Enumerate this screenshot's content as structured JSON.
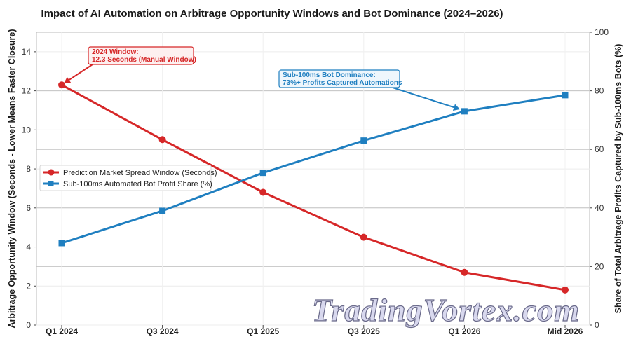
{
  "chart_data": {
    "type": "line",
    "title": "Impact of AI Automation on Arbitrage Opportunity Windows and Bot Dominance (2024–2026)",
    "categories": [
      "Q1 2024",
      "Q3 2024",
      "Q1 2025",
      "Q3 2025",
      "Q1 2026",
      "Mid 2026"
    ],
    "ylabel": "Arbitrage Opportunity Window (Seconds - Lower Means Faster Closure)",
    "y2label": "Share of Total Arbitrage Profits Captured by Sub-100ms Bots (%)",
    "ylim": [
      0,
      15
    ],
    "y2lim": [
      0,
      100
    ],
    "yticks": [
      0,
      2,
      4,
      6,
      8,
      10,
      12,
      14
    ],
    "y2ticks": [
      0,
      20,
      40,
      60,
      80,
      100
    ],
    "grid": true,
    "legend_position": "center-left",
    "series": [
      {
        "name": "Prediction Market Spread Window (Seconds)",
        "axis": "left",
        "color": "#d62728",
        "marker": "circle",
        "values": [
          12.3,
          9.5,
          6.8,
          4.5,
          2.7,
          1.8
        ]
      },
      {
        "name": "Sub-100ms Automated Bot Profit Share (%)",
        "axis": "right",
        "color": "#1f7fc0",
        "marker": "square",
        "values": [
          28,
          39,
          52,
          63,
          73,
          78.5
        ]
      }
    ],
    "annotations": [
      {
        "series": 0,
        "point": 0,
        "lines": [
          "2024 Window:",
          "12.3 Seconds (Manual Window)"
        ],
        "color": "#d62728"
      },
      {
        "series": 1,
        "point": 4,
        "lines": [
          "Sub-100ms Bot Dominance:",
          "73%+ Profits Captured Automations"
        ],
        "color": "#1f7fc0"
      }
    ]
  },
  "watermark": "TradingVortex.com"
}
